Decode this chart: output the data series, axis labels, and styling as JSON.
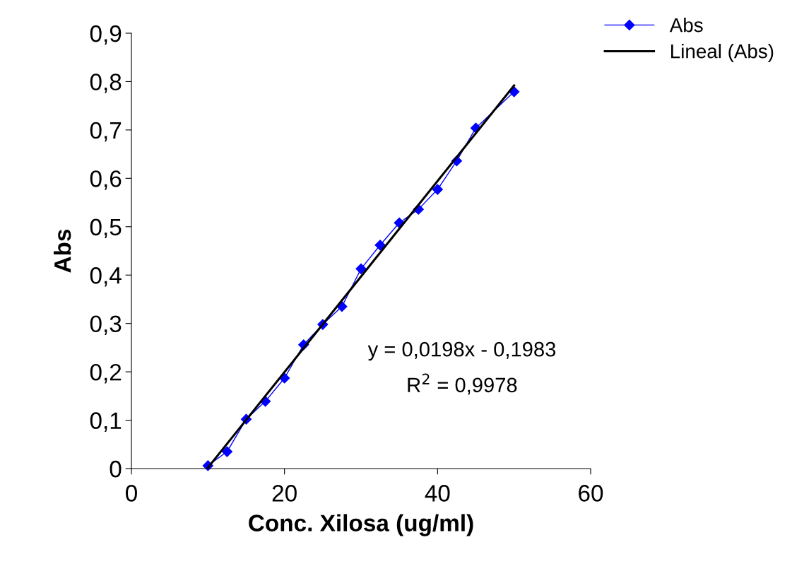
{
  "chart_data": {
    "type": "line",
    "xlabel": "Conc. Xilosa (ug/ml)",
    "ylabel": "Abs",
    "xlim": [
      0,
      60
    ],
    "xticks": [
      0,
      20,
      40,
      60
    ],
    "ylim": [
      0,
      0.9
    ],
    "yticks": [
      {
        "value": 0,
        "label": "0"
      },
      {
        "value": 0.1,
        "label": "0,1"
      },
      {
        "value": 0.2,
        "label": "0,2"
      },
      {
        "value": 0.3,
        "label": "0,3"
      },
      {
        "value": 0.4,
        "label": "0,4"
      },
      {
        "value": 0.5,
        "label": "0,5"
      },
      {
        "value": 0.6,
        "label": "0,6"
      },
      {
        "value": 0.7,
        "label": "0,7"
      },
      {
        "value": 0.8,
        "label": "0,8"
      },
      {
        "value": 0.9,
        "label": "0,9"
      }
    ],
    "grid": false,
    "legend": "top right",
    "series": [
      {
        "name": "Abs",
        "color": "#0000ff",
        "marker": "diamond",
        "x": [
          10,
          12.5,
          15,
          17.5,
          20,
          22.5,
          25,
          27.5,
          30,
          32.5,
          35,
          37.5,
          40,
          42.5,
          45,
          50
        ],
        "values": [
          0.006,
          0.035,
          0.102,
          0.139,
          0.187,
          0.256,
          0.298,
          0.335,
          0.413,
          0.462,
          0.508,
          0.536,
          0.577,
          0.636,
          0.704,
          0.779
        ]
      },
      {
        "name": "Lineal (Abs)",
        "color": "#000000",
        "marker": "none",
        "x": [
          10,
          50
        ],
        "values": [
          0.002,
          0.792
        ]
      }
    ],
    "annotations": [
      "y = 0,0198x - 0,1983",
      "R$^{2}$ = 0,9978"
    ]
  }
}
